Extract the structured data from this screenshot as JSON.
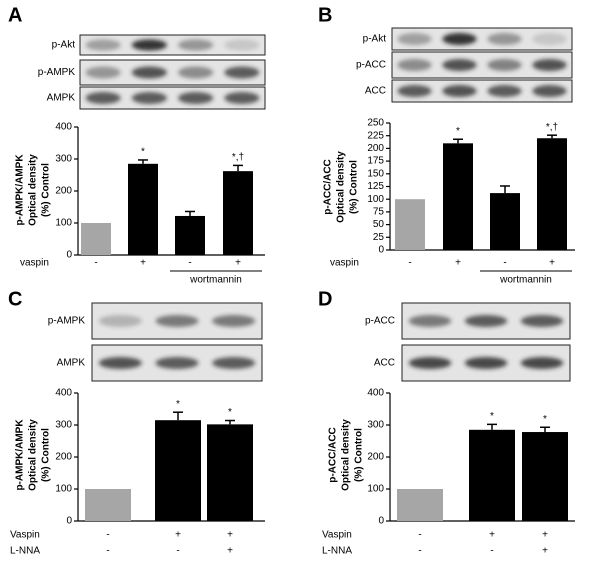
{
  "chart_data": [
    {
      "type": "bar",
      "panel": "A",
      "blot_labels": [
        "p-Akt",
        "p-AMPK",
        "AMPK"
      ],
      "ylabel_lines": [
        "p-AMPK/AMPK",
        "Optical density",
        "(%) Control"
      ],
      "values": [
        100,
        285,
        122,
        262
      ],
      "errors": [
        0,
        12,
        14,
        18
      ],
      "annotations": [
        null,
        "*",
        null,
        "*,†"
      ],
      "colors": [
        "#a6a6a6",
        "#000000",
        "#000000",
        "#000000"
      ],
      "ylim": [
        0,
        400
      ],
      "yticks": [
        0,
        100,
        200,
        300,
        400
      ],
      "conditions": [
        {
          "name": "vaspin",
          "signs": [
            "-",
            "+",
            "-",
            "+"
          ]
        }
      ],
      "bracket_label": "wortmannin"
    },
    {
      "type": "bar",
      "panel": "B",
      "blot_labels": [
        "p-Akt",
        "p-ACC",
        "ACC"
      ],
      "ylabel_lines": [
        "p-ACC/ACC",
        "Optical density",
        "(%) Control"
      ],
      "values": [
        100,
        210,
        112,
        220
      ],
      "errors": [
        0,
        8,
        14,
        6
      ],
      "annotations": [
        null,
        "*",
        null,
        "*,†"
      ],
      "colors": [
        "#a6a6a6",
        "#000000",
        "#000000",
        "#000000"
      ],
      "ylim": [
        0,
        250
      ],
      "yticks": [
        0,
        25,
        50,
        75,
        100,
        125,
        150,
        175,
        200,
        225,
        250
      ],
      "conditions": [
        {
          "name": "vaspin",
          "signs": [
            "-",
            "+",
            "-",
            "+"
          ]
        }
      ],
      "bracket_label": "wortmannin"
    },
    {
      "type": "bar",
      "panel": "C",
      "blot_labels": [
        "p-AMPK",
        "AMPK"
      ],
      "ylabel_lines": [
        "p-AMPK/AMPK",
        "Optical density",
        "(%) Control"
      ],
      "values": [
        100,
        315,
        302
      ],
      "errors": [
        0,
        25,
        12
      ],
      "annotations": [
        null,
        "*",
        "*"
      ],
      "colors": [
        "#a6a6a6",
        "#000000",
        "#000000"
      ],
      "ylim": [
        0,
        400
      ],
      "yticks": [
        0,
        100,
        200,
        300,
        400
      ],
      "conditions": [
        {
          "name": "Vaspin",
          "signs": [
            "-",
            "+",
            "+"
          ]
        },
        {
          "name": "L-NNA",
          "signs": [
            "-",
            "-",
            "+"
          ]
        }
      ]
    },
    {
      "type": "bar",
      "panel": "D",
      "blot_labels": [
        "p-ACC",
        "ACC"
      ],
      "ylabel_lines": [
        "p-ACC/ACC",
        "Optical density",
        "(%) Control"
      ],
      "values": [
        100,
        285,
        278
      ],
      "errors": [
        0,
        17,
        15
      ],
      "annotations": [
        null,
        "*",
        "*"
      ],
      "colors": [
        "#a6a6a6",
        "#000000",
        "#000000"
      ],
      "ylim": [
        0,
        400
      ],
      "yticks": [
        0,
        100,
        200,
        300,
        400
      ],
      "conditions": [
        {
          "name": "Vaspin",
          "signs": [
            "-",
            "+",
            "+"
          ]
        },
        {
          "name": "L-NNA",
          "signs": [
            "-",
            "-",
            "+"
          ]
        }
      ]
    }
  ]
}
